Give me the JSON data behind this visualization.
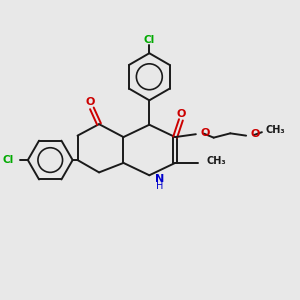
{
  "bg_color": "#e8e8e8",
  "bond_color": "#1a1a1a",
  "nitrogen_color": "#0000cc",
  "oxygen_color": "#cc0000",
  "chlorine_color": "#00aa00",
  "line_width": 1.4,
  "figsize": [
    3.0,
    3.0
  ],
  "dpi": 100,
  "xlim": [
    0,
    10
  ],
  "ylim": [
    0,
    10
  ]
}
